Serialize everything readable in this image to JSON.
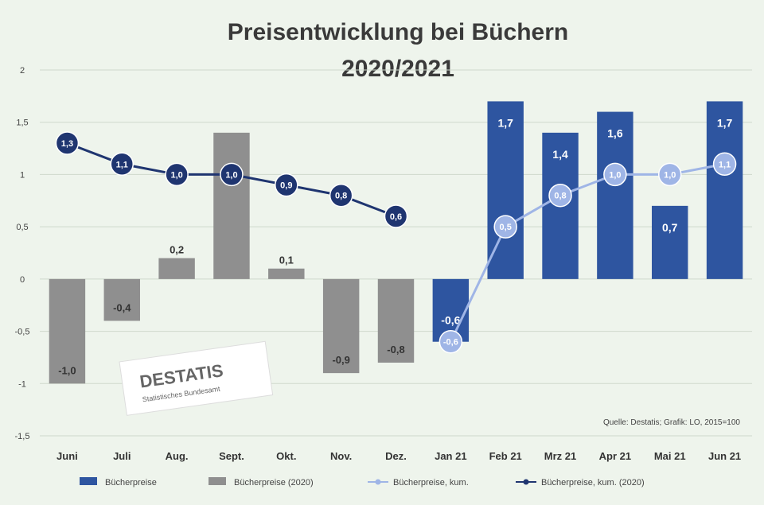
{
  "chart_data": {
    "type": "bar",
    "title": "Preisentwicklung bei Büchern",
    "subtitle": "2020/2021",
    "categories": [
      "Juni",
      "Juli",
      "Aug.",
      "Sept.",
      "Okt.",
      "Nov.",
      "Dez.",
      "Jan 21",
      "Feb 21",
      "Mrz 21",
      "Apr 21",
      "Mai 21",
      "Jun 21"
    ],
    "ylim": [
      -1.5,
      2
    ],
    "yticks": [
      "2",
      "1,5",
      "1",
      "0,5",
      "0",
      "-0,5",
      "-1",
      "-1,5"
    ],
    "ytick_values": [
      2,
      1.5,
      1,
      0.5,
      0,
      -0.5,
      -1,
      -1.5
    ],
    "series": [
      {
        "name": "Bücherpreise",
        "kind": "bar",
        "color": "#2e55a0",
        "values": [
          null,
          null,
          null,
          null,
          null,
          null,
          null,
          -0.6,
          1.7,
          1.4,
          1.6,
          0.7,
          1.7
        ],
        "labels": [
          "",
          "",
          "",
          "",
          "",
          "",
          "",
          "-0,6",
          "1,7",
          "1,4",
          "1,6",
          "0,7",
          "1,7"
        ]
      },
      {
        "name": "Bücherpreise (2020)",
        "kind": "bar",
        "color": "#8f8f8f",
        "values": [
          -1.0,
          -0.4,
          0.2,
          1.4,
          0.1,
          -0.9,
          -0.8,
          null,
          null,
          null,
          null,
          null,
          null
        ],
        "labels": [
          "-1,0",
          "-0,4",
          "0,2",
          "",
          "0,1",
          "-0,9",
          "-0,8",
          "",
          "",
          "",
          "",
          "",
          ""
        ]
      },
      {
        "name": "Bücherpreise, kum.",
        "kind": "line",
        "color": "#9fb5e6",
        "values": [
          null,
          null,
          null,
          null,
          null,
          null,
          null,
          -0.6,
          0.5,
          0.8,
          1.0,
          1.0,
          1.1
        ],
        "labels": [
          "",
          "",
          "",
          "",
          "",
          "",
          "",
          "-0,6",
          "0,5",
          "0,8",
          "1,0",
          "1,0",
          "1,1"
        ]
      },
      {
        "name": "Bücherpreise, kum. (2020)",
        "kind": "line",
        "color": "#1f3570",
        "values": [
          1.3,
          1.1,
          1.0,
          1.0,
          0.9,
          0.8,
          0.6,
          null,
          null,
          null,
          null,
          null,
          null
        ],
        "labels": [
          "1,3",
          "1,1",
          "1,0",
          "1,0",
          "0,9",
          "0,8",
          "0,6",
          "",
          "",
          "",
          "",
          "",
          ""
        ]
      }
    ],
    "grid": true,
    "legend_position": "bottom",
    "source": "Quelle: Destatis; Grafik: LO, 2015=100"
  },
  "logo_text": "DESTATIS",
  "logo_subtext": "Statistisches Bundesamt",
  "colors": {
    "background": "#eef4ec",
    "grid": "#cfd8cc",
    "blue_bar": "#2e55a0",
    "gray_bar": "#8f8f8f",
    "light_line": "#9fb5e6",
    "dark_line": "#1f3570"
  }
}
